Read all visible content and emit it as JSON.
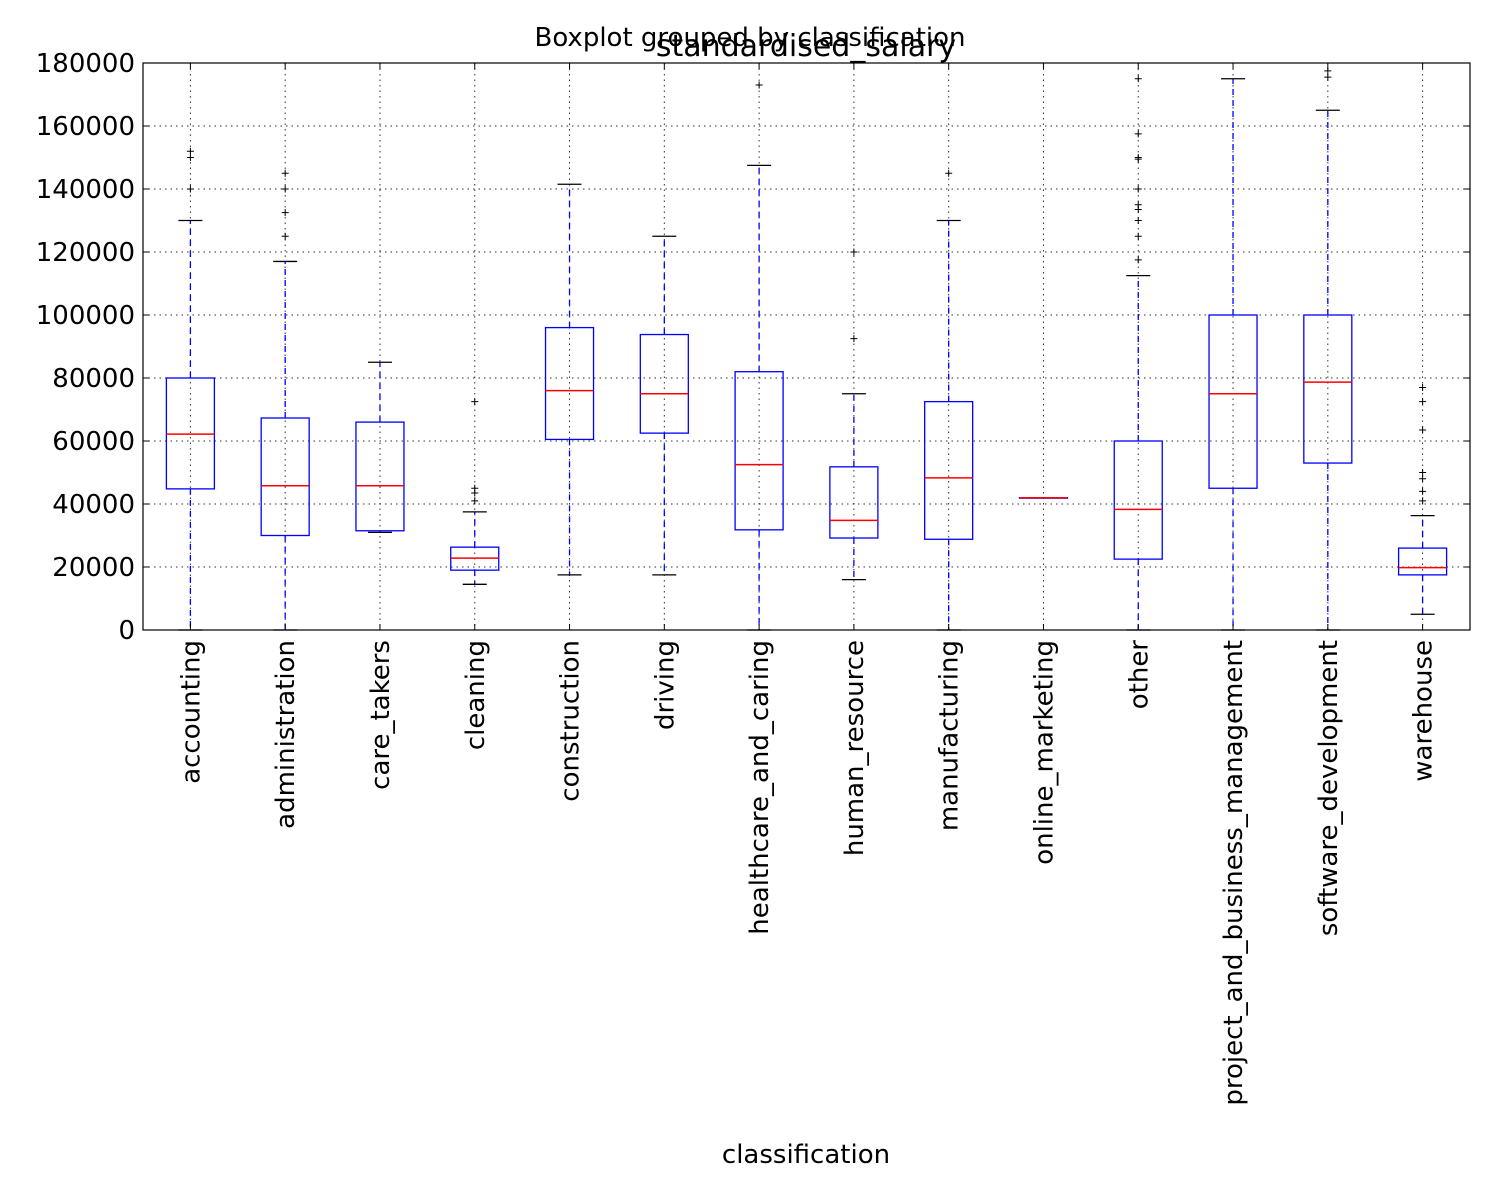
{
  "chart_data": {
    "type": "box",
    "suptitle": "Boxplot grouped by classification",
    "title": "standardised_salary",
    "xlabel": "classification",
    "ylabel": "",
    "ylim": [
      0,
      180000
    ],
    "yticks": [
      0,
      20000,
      40000,
      60000,
      80000,
      100000,
      120000,
      140000,
      160000,
      180000
    ],
    "grid": true,
    "categories": [
      "accounting",
      "administration",
      "care_takers",
      "cleaning",
      "construction",
      "driving",
      "healthcare_and_caring",
      "human_resource",
      "manufacturing",
      "online_marketing",
      "other",
      "project_and_business_management",
      "software_development",
      "warehouse"
    ],
    "boxes": [
      {
        "whislo": 0,
        "q1": 44800,
        "med": 62200,
        "q3": 80000,
        "whishi": 130000,
        "fliers": [
          140000,
          150000,
          152000
        ]
      },
      {
        "whislo": 0,
        "q1": 30000,
        "med": 45800,
        "q3": 67300,
        "whishi": 117000,
        "fliers": [
          125000,
          132500,
          140000,
          145000
        ]
      },
      {
        "whislo": 31000,
        "q1": 31500,
        "med": 45800,
        "q3": 66000,
        "whishi": 85000,
        "fliers": []
      },
      {
        "whislo": 14500,
        "q1": 19000,
        "med": 22800,
        "q3": 26300,
        "whishi": 37500,
        "fliers": [
          41000,
          43500,
          45000,
          72500
        ]
      },
      {
        "whislo": 17500,
        "q1": 60500,
        "med": 76000,
        "q3": 96000,
        "whishi": 141500,
        "fliers": []
      },
      {
        "whislo": 17500,
        "q1": 62500,
        "med": 75000,
        "q3": 93800,
        "whishi": 125000,
        "fliers": []
      },
      {
        "whislo": 0,
        "q1": 31800,
        "med": 52500,
        "q3": 82000,
        "whishi": 147500,
        "fliers": [
          173000
        ]
      },
      {
        "whislo": 16000,
        "q1": 29200,
        "med": 34800,
        "q3": 51800,
        "whishi": 75000,
        "fliers": [
          92500,
          120000
        ]
      },
      {
        "whislo": 0,
        "q1": 28800,
        "med": 48300,
        "q3": 72500,
        "whishi": 130000,
        "fliers": [
          145000
        ]
      },
      {
        "whislo": 42000,
        "q1": 42000,
        "med": 42000,
        "q3": 42000,
        "whishi": 42000,
        "fliers": []
      },
      {
        "whislo": 0,
        "q1": 22500,
        "med": 38300,
        "q3": 60000,
        "whishi": 112500,
        "fliers": [
          117500,
          125000,
          130000,
          133500,
          135000,
          140000,
          149500,
          150000,
          157500,
          175000
        ]
      },
      {
        "whislo": 0,
        "q1": 45000,
        "med": 75000,
        "q3": 100000,
        "whishi": 175000,
        "fliers": []
      },
      {
        "whislo": 0,
        "q1": 53000,
        "med": 78700,
        "q3": 100000,
        "whishi": 165000,
        "fliers": [
          175500,
          177500
        ]
      },
      {
        "whislo": 5000,
        "q1": 17500,
        "med": 19800,
        "q3": 26000,
        "whishi": 36300,
        "fliers": [
          41000,
          44000,
          48000,
          50000,
          63500,
          72500,
          77000
        ]
      }
    ]
  }
}
